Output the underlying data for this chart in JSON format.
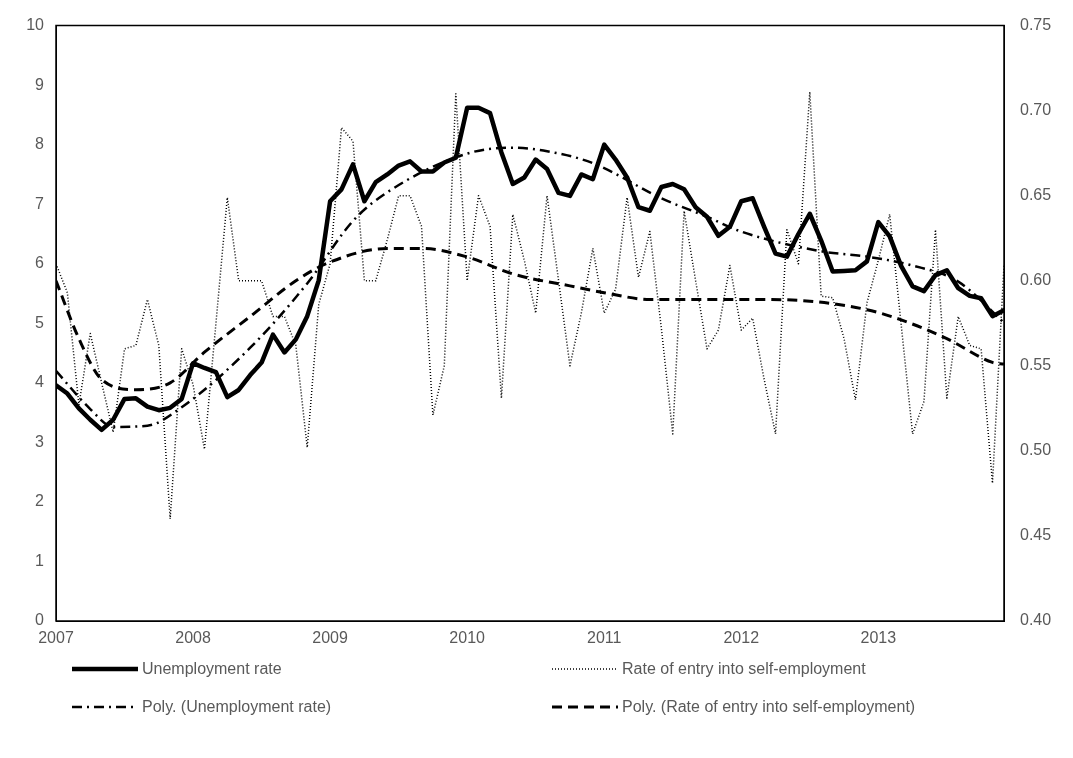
{
  "chart_data": {
    "type": "line",
    "x": [
      2007,
      2007.083,
      2007.167,
      2007.25,
      2007.333,
      2007.417,
      2007.5,
      2007.583,
      2007.667,
      2007.75,
      2007.833,
      2007.917,
      2008,
      2008.083,
      2008.167,
      2008.25,
      2008.333,
      2008.417,
      2008.5,
      2008.583,
      2008.667,
      2008.75,
      2008.833,
      2008.917,
      2009,
      2009.083,
      2009.167,
      2009.25,
      2009.333,
      2009.417,
      2009.5,
      2009.583,
      2009.667,
      2009.75,
      2009.833,
      2009.917,
      2010,
      2010.083,
      2010.167,
      2010.25,
      2010.333,
      2010.417,
      2010.5,
      2010.583,
      2010.667,
      2010.75,
      2010.833,
      2010.917,
      2011,
      2011.083,
      2011.167,
      2011.25,
      2011.333,
      2011.417,
      2011.5,
      2011.583,
      2011.667,
      2011.75,
      2011.833,
      2011.917,
      2012,
      2012.083,
      2012.167,
      2012.25,
      2012.333,
      2012.417,
      2012.5,
      2012.583,
      2012.667,
      2012.75,
      2012.833,
      2012.917,
      2013,
      2013.083,
      2013.167,
      2013.25,
      2013.333,
      2013.417,
      2013.5,
      2013.583,
      2013.667,
      2013.75,
      2013.833,
      2013.917
    ],
    "series": [
      {
        "name": "Unemployment rate",
        "color": "#000000",
        "line_style": "solid",
        "values": [
          3.96,
          3.82,
          3.57,
          3.38,
          3.21,
          3.38,
          3.73,
          3.74,
          3.6,
          3.54,
          3.58,
          3.73,
          4.33,
          4.25,
          4.18,
          3.76,
          3.88,
          4.13,
          4.34,
          4.81,
          4.51,
          4.73,
          5.12,
          5.72,
          7.05,
          7.25,
          7.67,
          7.05,
          7.37,
          7.5,
          7.65,
          7.72,
          7.55,
          7.55,
          7.7,
          7.78,
          8.62,
          8.62,
          8.53,
          7.87,
          7.34,
          7.45,
          7.75,
          7.59,
          7.19,
          7.14,
          7.5,
          7.42,
          8.0,
          7.75,
          7.45,
          6.95,
          6.89,
          7.29,
          7.34,
          7.25,
          6.95,
          6.79,
          6.47,
          6.62,
          7.05,
          7.1,
          6.62,
          6.17,
          6.12,
          6.5,
          6.84,
          6.39,
          5.87,
          5.88,
          5.89,
          6.04,
          6.7,
          6.46,
          5.96,
          5.62,
          5.54,
          5.81,
          5.89,
          5.59,
          5.46,
          5.42,
          5.12,
          5.22
        ]
      },
      {
        "name": "Rate of entry into self-employment",
        "color": "#000000",
        "line_style": "dotted",
        "axis": "y2",
        "values": [
          0.61,
          0.593,
          0.527,
          0.569,
          0.54,
          0.511,
          0.56,
          0.562,
          0.589,
          0.562,
          0.46,
          0.56,
          0.539,
          0.501,
          0.575,
          0.649,
          0.6,
          0.6,
          0.6,
          0.579,
          0.579,
          0.562,
          0.502,
          0.586,
          0.61,
          0.69,
          0.682,
          0.6,
          0.6,
          0.624,
          0.65,
          0.65,
          0.632,
          0.521,
          0.55,
          0.71,
          0.6,
          0.65,
          0.632,
          0.531,
          0.639,
          0.612,
          0.581,
          0.65,
          0.6,
          0.55,
          0.581,
          0.619,
          0.581,
          0.595,
          0.649,
          0.602,
          0.629,
          0.572,
          0.51,
          0.641,
          0.6,
          0.56,
          0.571,
          0.609,
          0.571,
          0.578,
          0.542,
          0.51,
          0.63,
          0.61,
          0.711,
          0.591,
          0.59,
          0.566,
          0.53,
          0.587,
          0.612,
          0.639,
          0.574,
          0.51,
          0.529,
          0.63,
          0.531,
          0.579,
          0.562,
          0.56,
          0.481,
          0.609
        ]
      },
      {
        "name": "Poly. (Unemployment rate)",
        "color": "#000000",
        "line_style": "dashdot",
        "x": [
          2007,
          2007.25,
          2007.417,
          2007.667,
          2007.917,
          2008.417,
          2008.833,
          2009.167,
          2009.417,
          2010,
          2010.333,
          2010.583,
          2010.917,
          2011.417,
          2011.75,
          2012,
          2012.583,
          2012.917,
          2013.25,
          2013.583,
          2013.917
        ],
        "values": [
          4.2,
          3.56,
          3.26,
          3.28,
          3.59,
          4.59,
          5.67,
          6.72,
          7.2,
          7.85,
          7.95,
          7.89,
          7.69,
          7.1,
          6.79,
          6.54,
          6.21,
          6.12,
          5.97,
          5.7,
          5.01
        ]
      },
      {
        "name": "Poly. (Rate of entry into self-employment)",
        "color": "#000000",
        "line_style": "dashed",
        "axis": "y2",
        "x": [
          2007,
          2007.167,
          2007.333,
          2007.583,
          2007.833,
          2008.083,
          2008.417,
          2008.75,
          2009,
          2009.417,
          2009.667,
          2010,
          2010.333,
          2010.75,
          2011,
          2011.333,
          2011.667,
          2012.083,
          2012.5,
          2012.917,
          2013.167,
          2013.5,
          2013.833,
          2013.917
        ],
        "values": [
          0.6,
          0.566,
          0.542,
          0.536,
          0.54,
          0.558,
          0.579,
          0.6,
          0.611,
          0.619,
          0.619,
          0.614,
          0.604,
          0.597,
          0.593,
          0.589,
          0.589,
          0.589,
          0.588,
          0.583,
          0.577,
          0.566,
          0.552,
          0.551
        ]
      }
    ],
    "xlim": [
      2007,
      2013.917
    ],
    "xticks": [
      2007,
      2008,
      2009,
      2010,
      2011,
      2012,
      2013
    ],
    "ylim": [
      0,
      10
    ],
    "yticks": [
      0,
      1,
      2,
      3,
      4,
      5,
      6,
      7,
      8,
      9,
      10
    ],
    "y2lim": [
      0.4,
      0.75
    ],
    "y2ticks": [
      {
        "value": 0.4,
        "label": "0.40"
      },
      {
        "value": 0.45,
        "label": "0.45"
      },
      {
        "value": 0.5,
        "label": "0.50"
      },
      {
        "value": 0.55,
        "label": "0.55"
      },
      {
        "value": 0.6,
        "label": "0.60"
      },
      {
        "value": 0.65,
        "label": "0.65"
      },
      {
        "value": 0.7,
        "label": "0.70"
      },
      {
        "value": 0.75,
        "label": "0.75"
      }
    ],
    "grid": false,
    "legend": "bottom",
    "marker": "none"
  }
}
